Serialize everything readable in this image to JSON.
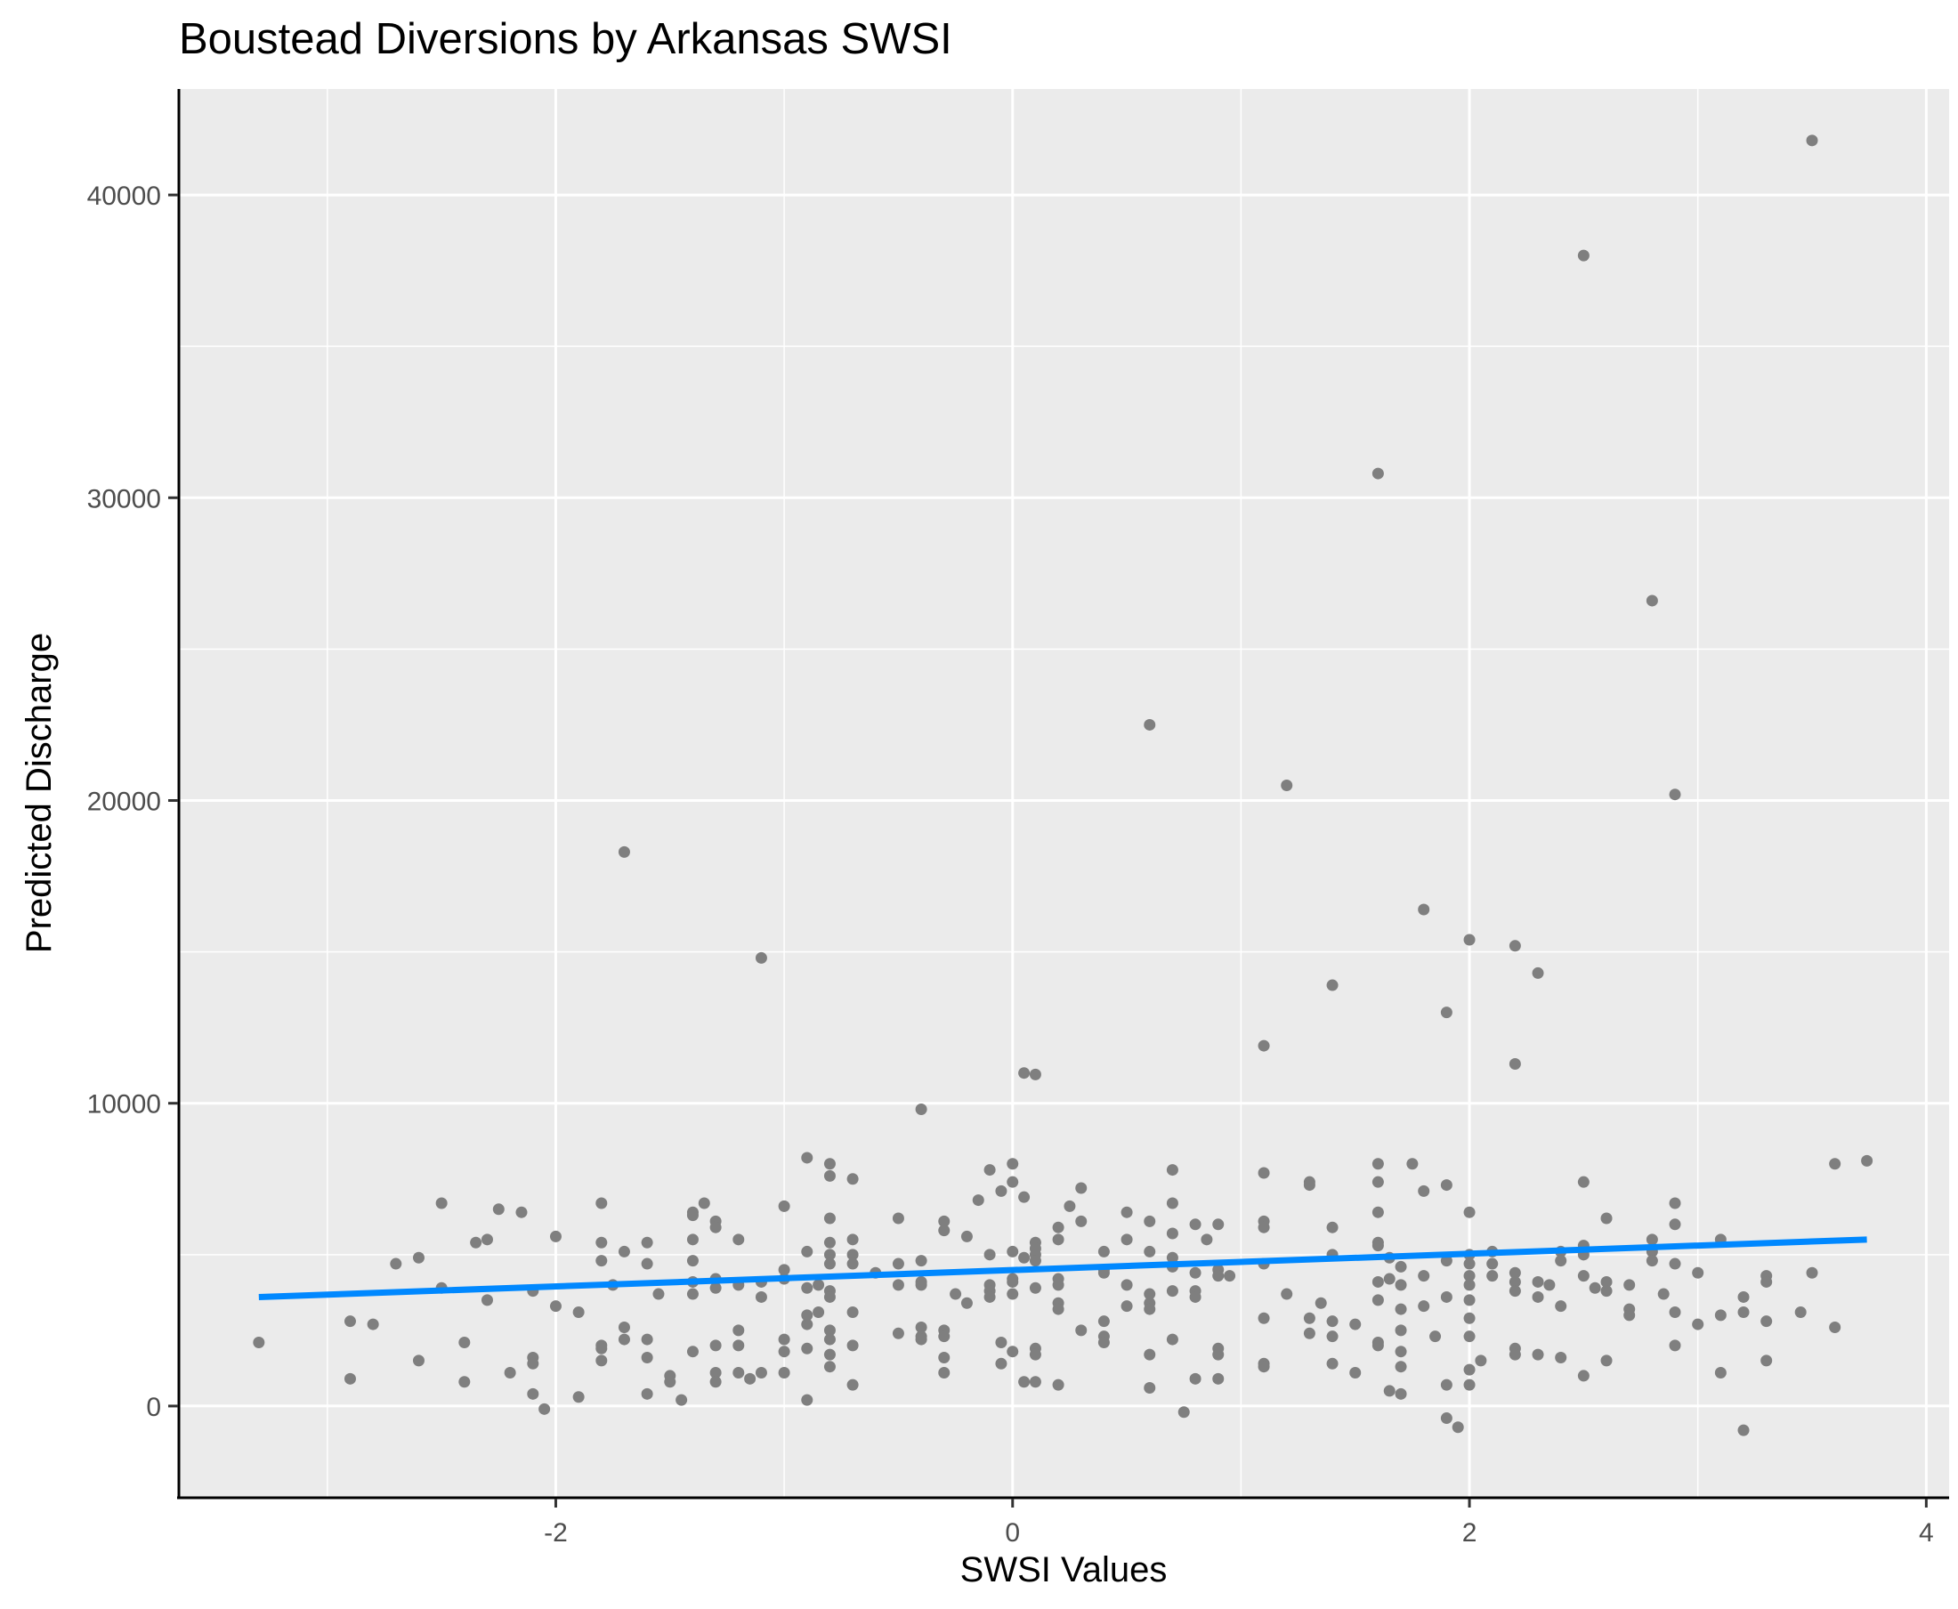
{
  "chart_data": {
    "type": "scatter",
    "title": "Boustead Diversions by Arkansas SWSI",
    "xlabel": "SWSI Values",
    "ylabel": "Predicted Discharge",
    "xlim": [
      -3.65,
      4.1
    ],
    "ylim": [
      -3000,
      43500
    ],
    "x_ticks": [
      -2,
      0,
      2,
      4
    ],
    "x_tick_labels": [
      "-2",
      "0",
      "2",
      "4"
    ],
    "y_ticks": [
      0,
      10000,
      20000,
      30000,
      40000
    ],
    "y_tick_labels": [
      "0",
      "10000",
      "20000",
      "30000",
      "40000"
    ],
    "grid": true,
    "legend": "none",
    "colors": {
      "panel": "#ebebeb",
      "grid": "#ffffff",
      "points": "#7f7f7f",
      "trend": "#0088ff"
    },
    "trend_line": {
      "method": "linear",
      "x": [
        -3.3,
        3.74
      ],
      "y": [
        3600,
        5500
      ]
    },
    "points": [
      [
        3.5,
        41800
      ],
      [
        2.5,
        38000
      ],
      [
        1.6,
        30800
      ],
      [
        2.8,
        26600
      ],
      [
        0.6,
        22500
      ],
      [
        1.2,
        20500
      ],
      [
        2.9,
        20200
      ],
      [
        -1.7,
        18300
      ],
      [
        1.8,
        16400
      ],
      [
        2.0,
        15400
      ],
      [
        2.2,
        15200
      ],
      [
        -1.1,
        14800
      ],
      [
        2.3,
        14300
      ],
      [
        1.4,
        13900
      ],
      [
        1.9,
        13000
      ],
      [
        1.1,
        11900
      ],
      [
        2.2,
        11300
      ],
      [
        0.05,
        11000
      ],
      [
        0.1,
        10950
      ],
      [
        -0.4,
        9800
      ],
      [
        -3.3,
        2100
      ],
      [
        -2.9,
        2800
      ],
      [
        -2.9,
        900
      ],
      [
        -2.8,
        2700
      ],
      [
        -2.7,
        4700
      ],
      [
        -2.6,
        4900
      ],
      [
        -2.6,
        1500
      ],
      [
        -2.5,
        3900
      ],
      [
        -2.5,
        6700
      ],
      [
        -2.4,
        2100
      ],
      [
        -2.4,
        800
      ],
      [
        -2.35,
        5400
      ],
      [
        -2.3,
        5500
      ],
      [
        -2.3,
        3500
      ],
      [
        -2.25,
        6500
      ],
      [
        -2.2,
        1100
      ],
      [
        -2.15,
        6400
      ],
      [
        -2.1,
        3800
      ],
      [
        -2.1,
        1600
      ],
      [
        -2.1,
        1400
      ],
      [
        -2.1,
        400
      ],
      [
        -2.05,
        -100
      ],
      [
        -2.0,
        5600
      ],
      [
        -2.0,
        3300
      ],
      [
        -1.9,
        3100
      ],
      [
        -1.9,
        300
      ],
      [
        -1.8,
        6700
      ],
      [
        -1.8,
        5400
      ],
      [
        -1.8,
        4800
      ],
      [
        -1.8,
        2000
      ],
      [
        -1.8,
        1900
      ],
      [
        -1.8,
        1500
      ],
      [
        -1.75,
        4000
      ],
      [
        -1.7,
        5100
      ],
      [
        -1.7,
        2600
      ],
      [
        -1.7,
        2200
      ],
      [
        -1.6,
        5400
      ],
      [
        -1.6,
        4700
      ],
      [
        -1.6,
        2200
      ],
      [
        -1.6,
        1600
      ],
      [
        -1.6,
        400
      ],
      [
        -1.55,
        3700
      ],
      [
        -1.5,
        1000
      ],
      [
        -1.5,
        800
      ],
      [
        -1.45,
        200
      ],
      [
        -1.4,
        6400
      ],
      [
        -1.4,
        6300
      ],
      [
        -1.4,
        5500
      ],
      [
        -1.4,
        4800
      ],
      [
        -1.4,
        4100
      ],
      [
        -1.4,
        3700
      ],
      [
        -1.4,
        1800
      ],
      [
        -1.35,
        6700
      ],
      [
        -1.3,
        6100
      ],
      [
        -1.3,
        5900
      ],
      [
        -1.3,
        4200
      ],
      [
        -1.3,
        3900
      ],
      [
        -1.3,
        2000
      ],
      [
        -1.3,
        1100
      ],
      [
        -1.3,
        800
      ],
      [
        -1.2,
        5500
      ],
      [
        -1.2,
        4000
      ],
      [
        -1.2,
        2500
      ],
      [
        -1.2,
        2000
      ],
      [
        -1.2,
        1100
      ],
      [
        -1.15,
        900
      ],
      [
        -1.1,
        4100
      ],
      [
        -1.1,
        3600
      ],
      [
        -1.1,
        1100
      ],
      [
        -1.0,
        4200
      ],
      [
        -1.0,
        2200
      ],
      [
        -0.9,
        5100
      ],
      [
        -0.9,
        2700
      ],
      [
        -0.9,
        200
      ],
      [
        -0.85,
        3100
      ],
      [
        -0.8,
        7600
      ],
      [
        -0.8,
        6200
      ],
      [
        -0.8,
        5400
      ],
      [
        -0.8,
        5000
      ],
      [
        -0.8,
        3800
      ],
      [
        -0.8,
        3600
      ],
      [
        -0.8,
        1300
      ],
      [
        -1.0,
        6600
      ],
      [
        -1.0,
        4500
      ],
      [
        -1.0,
        1800
      ],
      [
        -1.0,
        1100
      ],
      [
        -0.9,
        8200
      ],
      [
        -0.9,
        3900
      ],
      [
        -0.9,
        3000
      ],
      [
        -0.9,
        1900
      ],
      [
        -0.85,
        4000
      ],
      [
        -0.8,
        8000
      ],
      [
        -0.8,
        4700
      ],
      [
        -0.8,
        2500
      ],
      [
        -0.8,
        2200
      ],
      [
        -0.8,
        1700
      ],
      [
        -0.7,
        7500
      ],
      [
        -0.7,
        5500
      ],
      [
        -0.7,
        5000
      ],
      [
        -0.7,
        4700
      ],
      [
        -0.7,
        3100
      ],
      [
        -0.7,
        2000
      ],
      [
        -0.7,
        700
      ],
      [
        -0.6,
        4400
      ],
      [
        -0.5,
        6200
      ],
      [
        -0.5,
        4700
      ],
      [
        -0.5,
        4000
      ],
      [
        -0.5,
        2400
      ],
      [
        -0.4,
        4800
      ],
      [
        -0.4,
        4100
      ],
      [
        -0.4,
        4000
      ],
      [
        -0.4,
        2600
      ],
      [
        -0.4,
        2300
      ],
      [
        -0.4,
        2200
      ],
      [
        -0.3,
        6100
      ],
      [
        -0.3,
        5800
      ],
      [
        -0.3,
        2500
      ],
      [
        -0.3,
        2300
      ],
      [
        -0.3,
        1600
      ],
      [
        -0.3,
        1100
      ],
      [
        -0.25,
        3700
      ],
      [
        -0.2,
        3400
      ],
      [
        -0.2,
        5600
      ],
      [
        -0.15,
        6800
      ],
      [
        -0.1,
        7800
      ],
      [
        -0.1,
        5000
      ],
      [
        -0.1,
        4000
      ],
      [
        -0.1,
        3800
      ],
      [
        -0.1,
        3600
      ],
      [
        -0.05,
        2100
      ],
      [
        0.0,
        8000
      ],
      [
        0.0,
        7400
      ],
      [
        0.0,
        5100
      ],
      [
        0.0,
        4200
      ],
      [
        0.0,
        4100
      ],
      [
        0.0,
        3700
      ],
      [
        0.0,
        1800
      ],
      [
        -0.05,
        1400
      ],
      [
        -0.05,
        7100
      ],
      [
        0.05,
        6900
      ],
      [
        0.05,
        4900
      ],
      [
        0.05,
        800
      ],
      [
        0.1,
        5400
      ],
      [
        0.1,
        5200
      ],
      [
        0.1,
        5000
      ],
      [
        0.1,
        4800
      ],
      [
        0.1,
        3900
      ],
      [
        0.1,
        1900
      ],
      [
        0.1,
        1700
      ],
      [
        0.1,
        800
      ],
      [
        0.2,
        5900
      ],
      [
        0.2,
        5500
      ],
      [
        0.2,
        4200
      ],
      [
        0.2,
        4000
      ],
      [
        0.2,
        3400
      ],
      [
        0.2,
        3200
      ],
      [
        0.2,
        700
      ],
      [
        0.25,
        6600
      ],
      [
        0.3,
        7200
      ],
      [
        0.3,
        6100
      ],
      [
        0.3,
        2500
      ],
      [
        0.4,
        5100
      ],
      [
        0.4,
        4500
      ],
      [
        0.4,
        4400
      ],
      [
        0.4,
        2800
      ],
      [
        0.4,
        2300
      ],
      [
        0.4,
        2100
      ],
      [
        0.5,
        6400
      ],
      [
        0.5,
        5500
      ],
      [
        0.5,
        3300
      ],
      [
        0.5,
        4000
      ],
      [
        0.6,
        6100
      ],
      [
        0.6,
        5100
      ],
      [
        0.6,
        3700
      ],
      [
        0.6,
        3400
      ],
      [
        0.6,
        3200
      ],
      [
        0.6,
        1700
      ],
      [
        0.6,
        600
      ],
      [
        0.7,
        7800
      ],
      [
        0.7,
        6700
      ],
      [
        0.7,
        5700
      ],
      [
        0.7,
        4900
      ],
      [
        0.7,
        4600
      ],
      [
        0.7,
        3800
      ],
      [
        0.7,
        2200
      ],
      [
        0.75,
        -200
      ],
      [
        0.8,
        6000
      ],
      [
        0.8,
        4400
      ],
      [
        0.8,
        3800
      ],
      [
        0.8,
        3600
      ],
      [
        0.8,
        900
      ],
      [
        0.85,
        5500
      ],
      [
        0.9,
        6000
      ],
      [
        0.9,
        4500
      ],
      [
        0.9,
        4300
      ],
      [
        0.9,
        1900
      ],
      [
        0.9,
        1700
      ],
      [
        0.9,
        900
      ],
      [
        0.95,
        4300
      ],
      [
        1.1,
        7700
      ],
      [
        1.1,
        6100
      ],
      [
        1.1,
        5900
      ],
      [
        1.1,
        4700
      ],
      [
        1.1,
        2900
      ],
      [
        1.1,
        1400
      ],
      [
        1.1,
        1300
      ],
      [
        1.2,
        3700
      ],
      [
        1.3,
        7400
      ],
      [
        1.3,
        7300
      ],
      [
        1.3,
        2900
      ],
      [
        1.3,
        2400
      ],
      [
        1.35,
        3400
      ],
      [
        1.4,
        5900
      ],
      [
        1.4,
        5000
      ],
      [
        1.4,
        2800
      ],
      [
        1.4,
        2300
      ],
      [
        1.4,
        1400
      ],
      [
        1.5,
        2700
      ],
      [
        1.5,
        1100
      ],
      [
        1.6,
        8000
      ],
      [
        1.6,
        7400
      ],
      [
        1.6,
        6400
      ],
      [
        1.6,
        5400
      ],
      [
        1.6,
        5300
      ],
      [
        1.6,
        4100
      ],
      [
        1.6,
        3500
      ],
      [
        1.6,
        2100
      ],
      [
        1.6,
        2000
      ],
      [
        1.65,
        4900
      ],
      [
        1.65,
        4200
      ],
      [
        1.65,
        500
      ],
      [
        1.7,
        4600
      ],
      [
        1.7,
        4000
      ],
      [
        1.7,
        3200
      ],
      [
        1.7,
        2500
      ],
      [
        1.7,
        1800
      ],
      [
        1.7,
        1300
      ],
      [
        1.7,
        400
      ],
      [
        1.75,
        8000
      ],
      [
        1.8,
        7100
      ],
      [
        1.8,
        4300
      ],
      [
        1.8,
        3300
      ],
      [
        1.85,
        2300
      ],
      [
        1.9,
        7300
      ],
      [
        1.9,
        4800
      ],
      [
        1.9,
        3600
      ],
      [
        1.9,
        700
      ],
      [
        1.9,
        -400
      ],
      [
        1.95,
        -700
      ],
      [
        2.0,
        6400
      ],
      [
        2.0,
        5000
      ],
      [
        2.0,
        4700
      ],
      [
        2.0,
        4300
      ],
      [
        2.0,
        4000
      ],
      [
        2.0,
        3500
      ],
      [
        2.0,
        2900
      ],
      [
        2.0,
        2300
      ],
      [
        2.0,
        1200
      ],
      [
        2.0,
        700
      ],
      [
        2.05,
        1500
      ],
      [
        2.1,
        5100
      ],
      [
        2.1,
        4700
      ],
      [
        2.1,
        4300
      ],
      [
        2.2,
        4400
      ],
      [
        2.2,
        4100
      ],
      [
        2.2,
        3800
      ],
      [
        2.2,
        1900
      ],
      [
        2.2,
        1700
      ],
      [
        2.3,
        4100
      ],
      [
        2.3,
        3600
      ],
      [
        2.3,
        1700
      ],
      [
        2.35,
        4000
      ],
      [
        2.4,
        5100
      ],
      [
        2.4,
        4800
      ],
      [
        2.4,
        3300
      ],
      [
        2.4,
        1600
      ],
      [
        2.5,
        7400
      ],
      [
        2.5,
        5300
      ],
      [
        2.5,
        5000
      ],
      [
        2.5,
        4300
      ],
      [
        2.5,
        1000
      ],
      [
        2.55,
        3900
      ],
      [
        2.6,
        6200
      ],
      [
        2.6,
        4100
      ],
      [
        2.6,
        3800
      ],
      [
        2.6,
        1500
      ],
      [
        2.7,
        4000
      ],
      [
        2.7,
        3200
      ],
      [
        2.7,
        3000
      ],
      [
        2.8,
        5500
      ],
      [
        2.8,
        5100
      ],
      [
        2.8,
        4800
      ],
      [
        2.85,
        3700
      ],
      [
        2.9,
        6700
      ],
      [
        2.9,
        6000
      ],
      [
        2.9,
        4700
      ],
      [
        2.9,
        3100
      ],
      [
        2.9,
        2000
      ],
      [
        3.0,
        4400
      ],
      [
        3.0,
        2700
      ],
      [
        3.1,
        5500
      ],
      [
        3.1,
        3000
      ],
      [
        3.1,
        1100
      ],
      [
        3.2,
        3600
      ],
      [
        3.2,
        3100
      ],
      [
        3.2,
        -800
      ],
      [
        3.3,
        4300
      ],
      [
        3.3,
        4100
      ],
      [
        3.3,
        2800
      ],
      [
        3.3,
        1500
      ],
      [
        3.45,
        3100
      ],
      [
        3.5,
        4400
      ],
      [
        3.6,
        8000
      ],
      [
        3.6,
        2600
      ],
      [
        3.74,
        8100
      ]
    ]
  }
}
